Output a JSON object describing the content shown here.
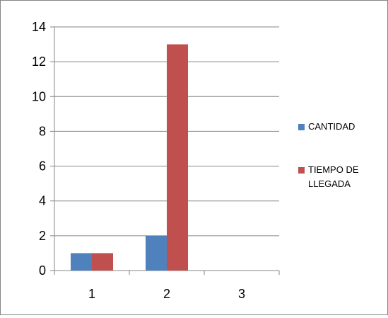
{
  "chart_data": {
    "type": "bar",
    "title": "",
    "xlabel": "",
    "ylabel": "",
    "categories": [
      "1",
      "2",
      "3"
    ],
    "ylim": [
      0,
      14
    ],
    "yticks": [
      "0",
      "2",
      "4",
      "6",
      "8",
      "10",
      "12",
      "14"
    ],
    "grid": true,
    "legend_position": "right",
    "series": [
      {
        "name": "CANTIDAD",
        "values": [
          1,
          2,
          0
        ],
        "color": "#4F81BD"
      },
      {
        "name": "TIEMPO DE LLEGADA",
        "name_lines": [
          "TIEMPO DE",
          "LLEGADA"
        ],
        "values": [
          1,
          13,
          0
        ],
        "color": "#C0504D"
      }
    ]
  }
}
